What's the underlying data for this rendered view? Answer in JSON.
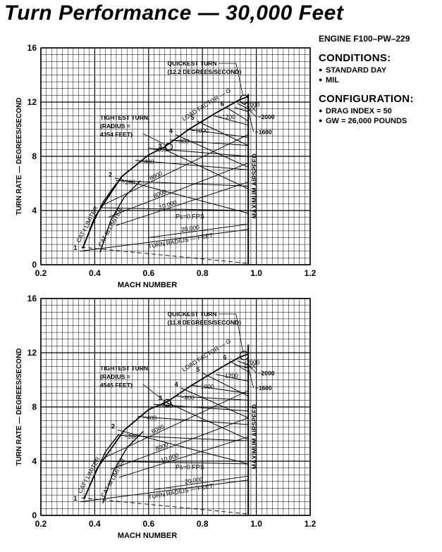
{
  "page": {
    "title": "Turn Performance — 30,000 Feet",
    "engine": "ENGINE F100–PW–229",
    "conditions_header": "CONDITIONS:",
    "conditions": [
      "STANDARD DAY",
      "MIL"
    ],
    "configuration_header": "CONFIGURATION:",
    "configuration": [
      "DRAG INDEX = 50",
      "GW = 26,000 POUNDS"
    ]
  },
  "colors": {
    "ink": "#000000",
    "paper": "#ffffff"
  },
  "chart_data": [
    {
      "type": "line",
      "title": "Turn Performance — 30,000 Feet",
      "xlabel": "MACH NUMBER",
      "ylabel": "TURN RATE — DEGREES/SECOND",
      "xlim": [
        0.2,
        1.2
      ],
      "ylim": [
        0,
        16
      ],
      "xticks": [
        "0.2",
        "0.4",
        "0.6",
        "0.8",
        "1.0",
        "1.2"
      ],
      "yticks": [
        "0",
        "4",
        "8",
        "12",
        "16"
      ],
      "grid": true,
      "max_airspeed_mach": 0.97,
      "max_airspeed_label": "MAXIMUM AIRSPEED",
      "limiters": [
        {
          "name": "CAT I LIMITER",
          "points": [
            [
              0.355,
              1.2
            ],
            [
              0.39,
              2.9
            ],
            [
              0.43,
              4.6
            ],
            [
              0.48,
              6.0
            ]
          ]
        },
        {
          "name": "CAT III LIMITER",
          "points": [
            [
              0.42,
              0.9
            ],
            [
              0.46,
              3.3
            ],
            [
              0.51,
              5.0
            ],
            [
              0.57,
              6.2
            ]
          ]
        }
      ],
      "load_factor_label": "LOAD FACTOR — G",
      "load_factor_lines": [
        {
          "g": "1",
          "points": [
            [
              0.345,
              1.0
            ],
            [
              0.97,
              2.6
            ]
          ]
        },
        {
          "g": "2",
          "points": [
            [
              0.475,
              6.4
            ],
            [
              0.97,
              3.8
            ]
          ]
        },
        {
          "g": "3",
          "points": [
            [
              0.66,
              8.5
            ],
            [
              0.97,
              5.6
            ]
          ]
        },
        {
          "g": "4",
          "points": [
            [
              0.7,
              9.6
            ],
            [
              0.97,
              7.2
            ]
          ]
        },
        {
          "g": "5",
          "points": [
            [
              0.78,
              10.6
            ],
            [
              0.97,
              8.8
            ]
          ]
        },
        {
          "g": "6",
          "points": [
            [
              0.89,
              11.6
            ],
            [
              0.97,
              10.6
            ]
          ]
        }
      ],
      "ps_label": "Ps=0 FPS",
      "ps_lines": [
        {
          "label": "2000",
          "points": [
            [
              0.93,
              11.9
            ],
            [
              0.97,
              11.5
            ]
          ]
        },
        {
          "label": "1600",
          "points": [
            [
              0.92,
              11.6
            ],
            [
              0.97,
              11.3
            ]
          ]
        },
        {
          "label": "1200",
          "points": [
            [
              0.84,
              11.0
            ],
            [
              0.97,
              10.3
            ]
          ]
        },
        {
          "label": "1000",
          "points": [
            [
              0.74,
              10.0
            ],
            [
              0.97,
              9.4
            ]
          ]
        },
        {
          "label": "800",
          "points": [
            [
              0.68,
              9.2
            ],
            [
              0.97,
              8.8
            ]
          ]
        },
        {
          "label": "600",
          "points": [
            [
              0.6,
              8.6
            ],
            [
              0.97,
              8.0
            ]
          ]
        },
        {
          "label": "400",
          "points": [
            [
              0.55,
              7.7
            ],
            [
              0.97,
              7.0
            ]
          ]
        },
        {
          "label": "200",
          "points": [
            [
              0.48,
              6.2
            ],
            [
              0.97,
              5.8
            ]
          ]
        },
        {
          "label": "0",
          "points": [
            [
              0.42,
              4.2
            ],
            [
              0.97,
              4.0
            ]
          ]
        }
      ],
      "turn_radius_label": "TURN RADIUS — FEET",
      "turn_radius_lines": [
        {
          "label": "6000",
          "points": [
            [
              0.43,
              4.4
            ],
            [
              0.97,
              9.6
            ]
          ]
        },
        {
          "label": "8000",
          "points": [
            [
              0.45,
              3.5
            ],
            [
              0.97,
              7.5
            ]
          ]
        },
        {
          "label": "10,000",
          "points": [
            [
              0.48,
              2.9
            ],
            [
              0.97,
              6.1
            ]
          ]
        },
        {
          "label": "20,000",
          "points": [
            [
              0.6,
              2.0
            ],
            [
              0.97,
              3.0
            ]
          ]
        }
      ],
      "envelope": [
        [
          0.355,
          1.2
        ],
        [
          0.4,
          3.5
        ],
        [
          0.5,
          6.5
        ],
        [
          0.6,
          8.1
        ],
        [
          0.66,
          8.7
        ],
        [
          0.75,
          10.0
        ],
        [
          0.85,
          11.2
        ],
        [
          0.94,
          12.2
        ],
        [
          0.97,
          12.4
        ]
      ],
      "tightest_turn": {
        "label": "TIGHTEST TURN",
        "line2": "(RADIUS =",
        "line3": "4354 FEET)",
        "mach": 0.675,
        "rate": 8.7
      },
      "quickest_turn": {
        "label": "QUICKEST TURN",
        "line2": "(12.2 DEGREES/SECOND)",
        "mach": 0.955,
        "rate": 12.2
      }
    },
    {
      "type": "line",
      "title": "Turn Performance — 30,000 Feet",
      "xlabel": "MACH NUMBER",
      "ylabel": "TURN RATE — DEGREES/SECOND",
      "xlim": [
        0.2,
        1.2
      ],
      "ylim": [
        0,
        16
      ],
      "xticks": [
        "0.2",
        "0.4",
        "0.6",
        "0.8",
        "1.0",
        "1.2"
      ],
      "yticks": [
        "0",
        "4",
        "8",
        "12",
        "16"
      ],
      "grid": true,
      "max_airspeed_mach": 0.97,
      "max_airspeed_label": "MAXIMUM AIRSPEED",
      "limiters": [
        {
          "name": "CAT I LIMITER",
          "points": [
            [
              0.36,
              1.2
            ],
            [
              0.4,
              3.0
            ],
            [
              0.44,
              4.7
            ],
            [
              0.49,
              6.0
            ]
          ]
        },
        {
          "name": "CAT III LIMITER",
          "points": [
            [
              0.43,
              0.9
            ],
            [
              0.47,
              3.3
            ],
            [
              0.52,
              5.0
            ],
            [
              0.58,
              6.2
            ]
          ]
        }
      ],
      "load_factor_label": "LOAD FACTOR — G",
      "load_factor_lines": [
        {
          "g": "1",
          "points": [
            [
              0.345,
              1.0
            ],
            [
              0.97,
              2.6
            ]
          ]
        },
        {
          "g": "2",
          "points": [
            [
              0.485,
              6.3
            ],
            [
              0.97,
              3.8
            ]
          ]
        },
        {
          "g": "3",
          "points": [
            [
              0.66,
              8.4
            ],
            [
              0.97,
              5.6
            ]
          ]
        },
        {
          "g": "4",
          "points": [
            [
              0.72,
              9.4
            ],
            [
              0.97,
              7.2
            ]
          ]
        },
        {
          "g": "5",
          "points": [
            [
              0.8,
              10.5
            ],
            [
              0.97,
              8.8
            ]
          ]
        },
        {
          "g": "6",
          "points": [
            [
              0.9,
              11.4
            ],
            [
              0.97,
              10.6
            ]
          ]
        }
      ],
      "ps_label": "Ps=0 FPS",
      "ps_lines": [
        {
          "label": "2000",
          "points": [
            [
              0.93,
              11.4
            ],
            [
              0.97,
              11.1
            ]
          ]
        },
        {
          "label": "1600",
          "points": [
            [
              0.92,
              11.1
            ],
            [
              0.97,
              10.9
            ]
          ]
        },
        {
          "label": "1200",
          "points": [
            [
              0.85,
              10.4
            ],
            [
              0.97,
              9.9
            ]
          ]
        },
        {
          "label": "1000",
          "points": [
            [
              0.76,
              9.6
            ],
            [
              0.97,
              9.0
            ]
          ]
        },
        {
          "label": "800",
          "points": [
            [
              0.7,
              8.8
            ],
            [
              0.97,
              8.5
            ]
          ]
        },
        {
          "label": "600",
          "points": [
            [
              0.62,
              8.2
            ],
            [
              0.97,
              7.7
            ]
          ]
        },
        {
          "label": "400",
          "points": [
            [
              0.56,
              7.3
            ],
            [
              0.97,
              6.7
            ]
          ]
        },
        {
          "label": "200",
          "points": [
            [
              0.49,
              5.9
            ],
            [
              0.97,
              5.5
            ]
          ]
        },
        {
          "label": "0",
          "points": [
            [
              0.43,
              4.0
            ],
            [
              0.97,
              3.8
            ]
          ]
        }
      ],
      "turn_radius_label": "TURN RADIUS — FEET",
      "turn_radius_lines": [
        {
          "label": "6000",
          "points": [
            [
              0.44,
              4.3
            ],
            [
              0.97,
              9.2
            ]
          ]
        },
        {
          "label": "8000",
          "points": [
            [
              0.46,
              3.4
            ],
            [
              0.97,
              7.2
            ]
          ]
        },
        {
          "label": "10,000",
          "points": [
            [
              0.49,
              2.8
            ],
            [
              0.97,
              5.8
            ]
          ]
        },
        {
          "label": "20,000",
          "points": [
            [
              0.62,
              1.9
            ],
            [
              0.97,
              2.9
            ]
          ]
        }
      ],
      "envelope": [
        [
          0.36,
          1.2
        ],
        [
          0.41,
          3.5
        ],
        [
          0.51,
          6.3
        ],
        [
          0.6,
          7.8
        ],
        [
          0.67,
          8.4
        ],
        [
          0.76,
          9.6
        ],
        [
          0.86,
          10.8
        ],
        [
          0.94,
          11.7
        ],
        [
          0.97,
          11.9
        ]
      ],
      "tightest_turn": {
        "label": "TIGHTEST TURN",
        "line2": "(RADIUS =",
        "line3": "4545 FEET)",
        "mach": 0.67,
        "rate": 8.3
      },
      "quickest_turn": {
        "label": "QUICKEST TURN",
        "line2": "(11.8 DEGREES/SECOND)",
        "mach": 0.955,
        "rate": 11.8
      }
    }
  ]
}
